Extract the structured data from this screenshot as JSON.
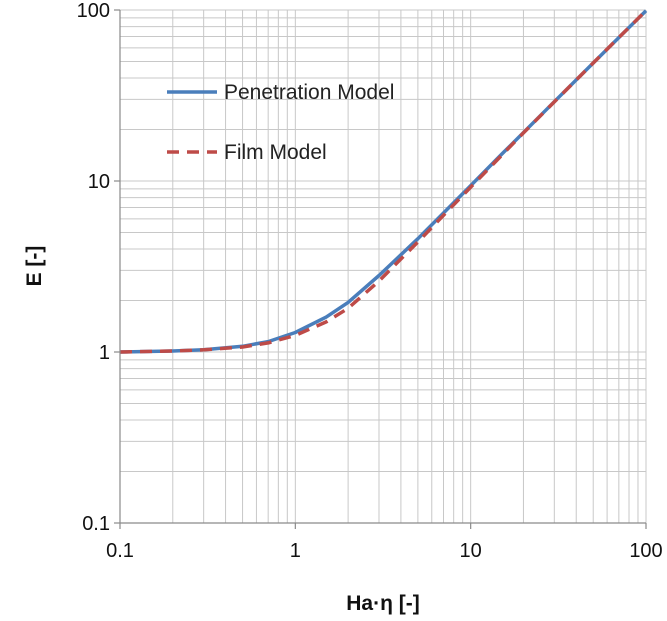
{
  "chart_data": {
    "type": "line",
    "xlabel": "Ha·η  [-]",
    "ylabel": "E [-]",
    "xscale": "log",
    "yscale": "log",
    "xlim": [
      0.1,
      100
    ],
    "ylim": [
      0.1,
      100
    ],
    "xticks": [
      {
        "value": 0.1,
        "label": "0.1"
      },
      {
        "value": 1,
        "label": "1"
      },
      {
        "value": 10,
        "label": "10"
      },
      {
        "value": 100,
        "label": "100"
      }
    ],
    "yticks": [
      {
        "value": 0.1,
        "label": "0.1"
      },
      {
        "value": 1,
        "label": "1"
      },
      {
        "value": 10,
        "label": "10"
      },
      {
        "value": 100,
        "label": "100"
      }
    ],
    "grid": "major and minor",
    "legend_position": "upper-left",
    "series": [
      {
        "name": "Penetration Model",
        "color": "#4a7ebb",
        "style": "solid",
        "x": [
          0.1,
          0.2,
          0.3,
          0.5,
          0.7,
          1,
          1.5,
          2,
          3,
          4,
          5,
          7,
          10,
          15,
          20,
          30,
          50,
          70,
          100
        ],
        "y": [
          1.0,
          1.013,
          1.03,
          1.08,
          1.15,
          1.3,
          1.6,
          1.95,
          2.8,
          3.7,
          4.6,
          6.5,
          9.4,
          14.3,
          19.2,
          29.1,
          49.0,
          69.0,
          99.0
        ]
      },
      {
        "name": "Film Model",
        "color": "#be4b48",
        "style": "dashed",
        "x": [
          0.1,
          0.2,
          0.3,
          0.5,
          0.7,
          1,
          1.5,
          2,
          3,
          4,
          5,
          7,
          10,
          15,
          20,
          30,
          50,
          70,
          100
        ],
        "y": [
          1.0,
          1.013,
          1.03,
          1.07,
          1.13,
          1.25,
          1.5,
          1.8,
          2.6,
          3.5,
          4.4,
          6.3,
          9.2,
          14.1,
          19.1,
          29.0,
          49.0,
          69.0,
          99.0
        ]
      }
    ]
  }
}
